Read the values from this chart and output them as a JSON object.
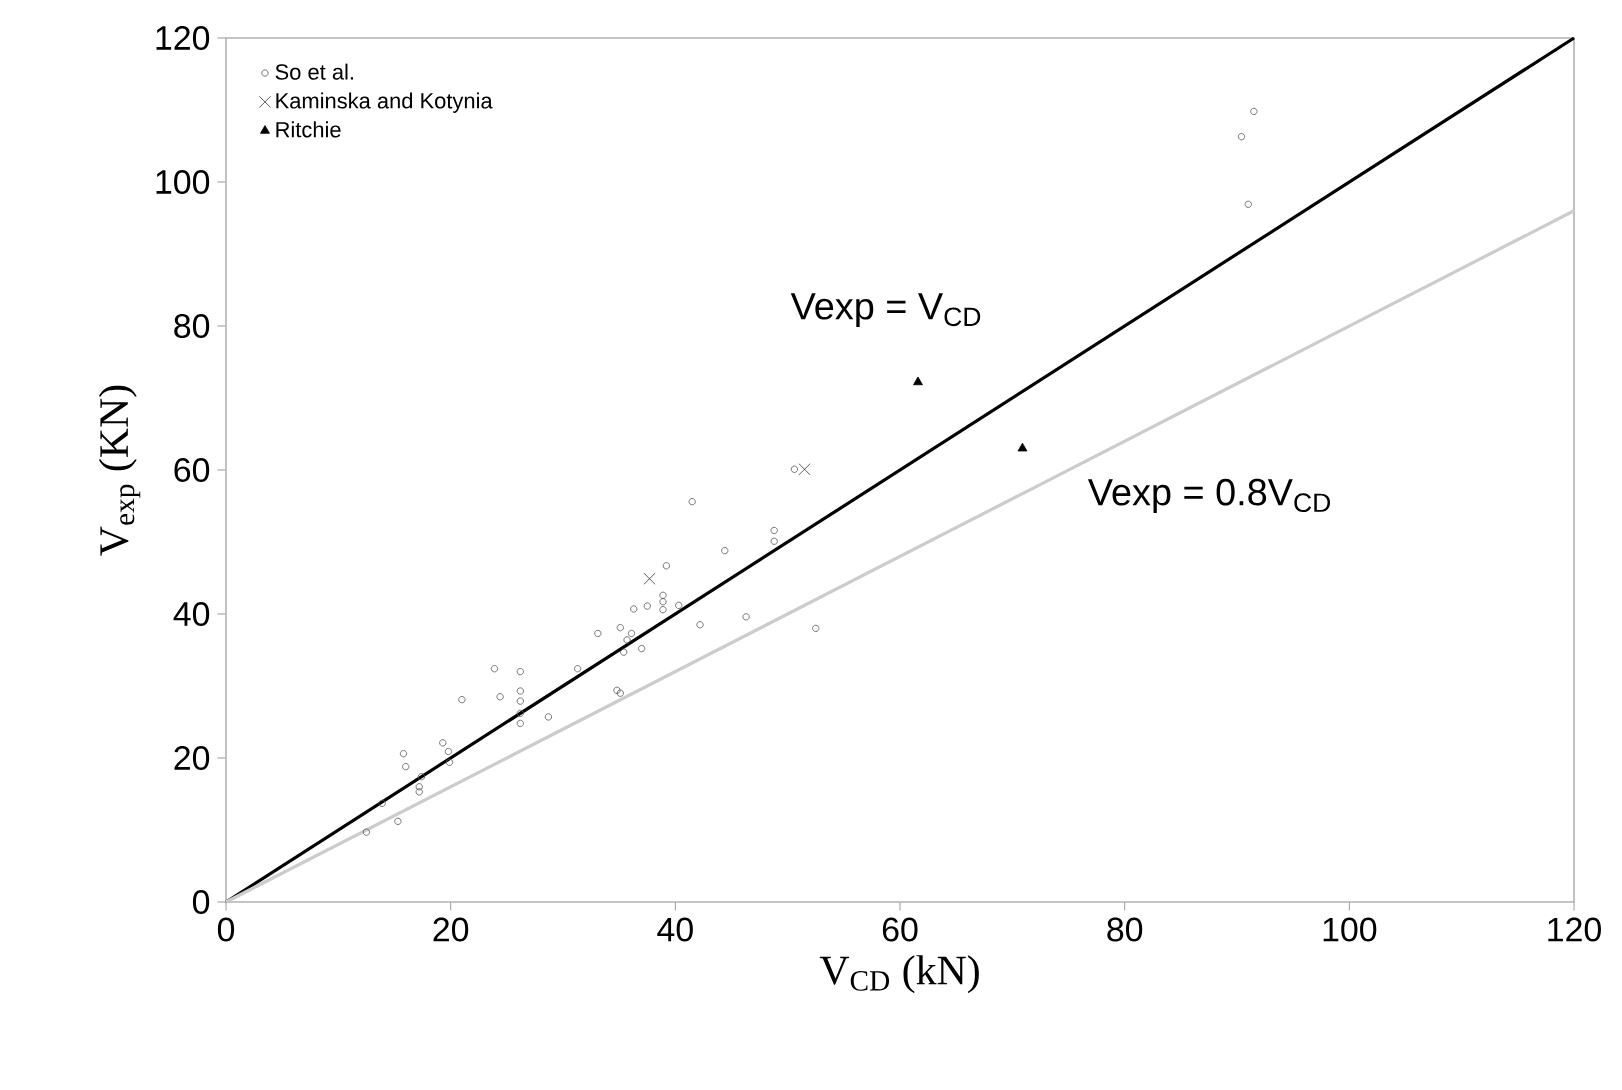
{
  "chart_data": {
    "type": "scatter",
    "xlabel": "V$_{CD}$ (kN)",
    "ylabel": "V$_{exp}$ (KN)",
    "xlim": [
      0,
      120
    ],
    "ylim": [
      0,
      120
    ],
    "xticks": [
      0,
      20,
      40,
      60,
      80,
      100,
      120
    ],
    "yticks": [
      0,
      20,
      40,
      60,
      80,
      100,
      120
    ],
    "legend": "top left",
    "series": [
      {
        "name": "So et al.",
        "marker": "circle",
        "color": "#555555",
        "x": [
          12.5,
          15.3,
          13.9,
          15.8,
          16.0,
          17.2,
          17.2,
          17.4,
          19.3,
          19.9,
          19.8,
          21.0,
          23.9,
          24.4,
          26.2,
          26.2,
          26.2,
          26.2,
          26.2,
          28.7,
          31.3,
          33.1,
          34.8,
          35.1,
          35.1,
          35.4,
          36.1,
          35.7,
          37.0,
          36.3,
          37.5,
          38.9,
          38.9,
          38.9,
          40.3,
          39.2,
          41.5,
          42.2,
          44.4,
          46.3,
          48.8,
          48.8,
          50.6,
          52.5,
          91.5,
          90.4,
          91.0
        ],
        "values": [
          9.7,
          11.2,
          13.7,
          20.6,
          18.8,
          16.0,
          15.3,
          17.4,
          22.1,
          19.4,
          20.9,
          28.1,
          32.4,
          28.5,
          32.0,
          29.3,
          27.9,
          26.2,
          24.8,
          25.7,
          32.4,
          37.3,
          29.4,
          29.0,
          38.1,
          34.7,
          37.3,
          36.4,
          35.2,
          40.7,
          41.1,
          42.6,
          41.7,
          40.6,
          41.2,
          46.7,
          55.6,
          38.5,
          48.8,
          39.6,
          51.6,
          50.1,
          60.1,
          38.0,
          109.8,
          106.3,
          96.9
        ]
      },
      {
        "name": "Kaminska and Kotynia",
        "marker": "cross",
        "color": "#333333",
        "x": [
          37.7,
          51.5
        ],
        "values": [
          44.9,
          60.1
        ]
      },
      {
        "name": "Ritchie",
        "marker": "triangle",
        "color": "#000000",
        "x": [
          61.6,
          70.9
        ],
        "values": [
          72.2,
          63.0
        ]
      },
      {
        "type": "line",
        "marker": "none",
        "color": "#000000",
        "x": [
          0,
          120
        ],
        "values": [
          0,
          120
        ]
      },
      {
        "type": "line",
        "marker": "none",
        "color": "#cccccc",
        "x": [
          0,
          120
        ],
        "values": [
          0,
          96
        ]
      }
    ],
    "annotations": [
      "Vexp = V$_{CD}$",
      "Vexp = 0.8V$_{CD}$"
    ]
  }
}
